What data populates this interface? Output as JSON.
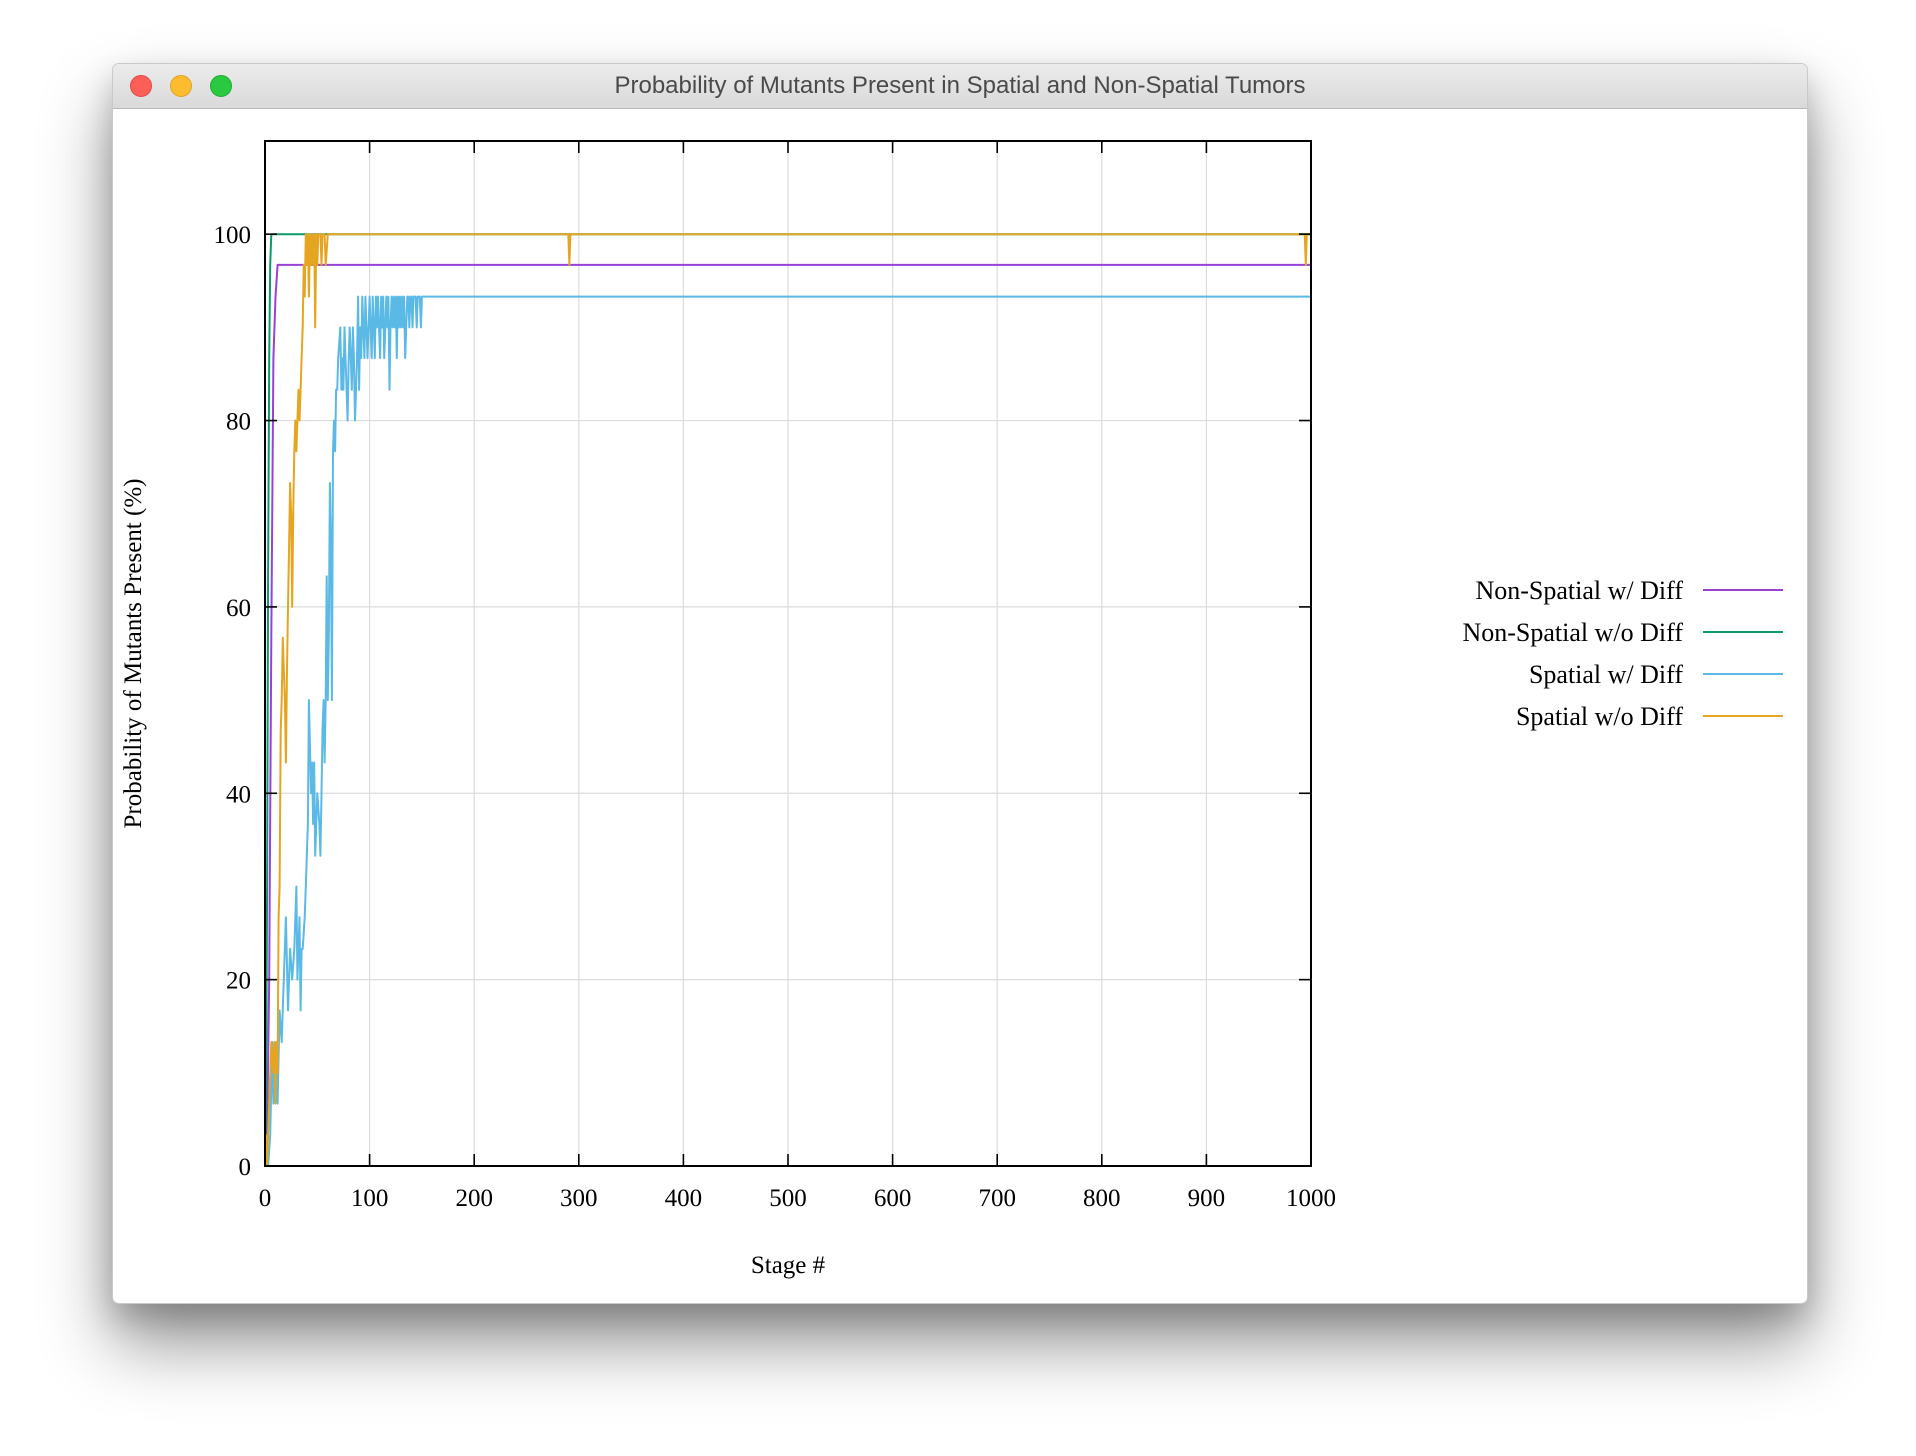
{
  "window": {
    "title": "Probability of Mutants Present in Spatial and Non-Spatial Tumors"
  },
  "chart_data": {
    "type": "line",
    "title": "",
    "xlabel": "Stage #",
    "ylabel": "Probability of Mutants Present (%)",
    "xlim": [
      0,
      1000
    ],
    "ylim": [
      0,
      110
    ],
    "xticks": [
      0,
      100,
      200,
      300,
      400,
      500,
      600,
      700,
      800,
      900,
      1000
    ],
    "yticks": [
      0,
      20,
      40,
      60,
      80,
      100
    ],
    "grid": true,
    "legend_position": "right",
    "series": [
      {
        "name": "Non-Spatial w/ Diff",
        "color": "#9b40d6",
        "x": [
          0,
          2,
          4,
          6,
          8,
          10,
          12,
          15,
          1000
        ],
        "y": [
          0,
          3.3,
          20,
          56.7,
          86.7,
          93.3,
          96.7,
          96.7,
          96.7
        ]
      },
      {
        "name": "Non-Spatial w/o Diff",
        "color": "#0a9a6e",
        "x": [
          0,
          1,
          2,
          3,
          4,
          5,
          6,
          7,
          8,
          1000
        ],
        "y": [
          0,
          6.7,
          30,
          63.3,
          86.7,
          96.7,
          100,
          100,
          100,
          100
        ]
      },
      {
        "name": "Spatial w/ Diff",
        "color": "#5bb9e6",
        "x": [
          0,
          3,
          5,
          7,
          8,
          9,
          10,
          12,
          14,
          16,
          18,
          20,
          22,
          24,
          26,
          28,
          30,
          31,
          32,
          33,
          34,
          35,
          36,
          38,
          39,
          40,
          41,
          42,
          44,
          45,
          46,
          47,
          48,
          50,
          52,
          53,
          54,
          55,
          56,
          57,
          58,
          59,
          60,
          61,
          62,
          63,
          64,
          65,
          66,
          67,
          68,
          69,
          70,
          72,
          73,
          74,
          75,
          76,
          77,
          78,
          79,
          80,
          81,
          82,
          83,
          84,
          85,
          86,
          87,
          88,
          89,
          90,
          91,
          92,
          93,
          94,
          95,
          96,
          97,
          98,
          99,
          100,
          101,
          102,
          103,
          104,
          105,
          106,
          107,
          108,
          109,
          110,
          111,
          112,
          113,
          114,
          115,
          116,
          117,
          118,
          119,
          120,
          121,
          122,
          123,
          124,
          125,
          126,
          127,
          128,
          129,
          130,
          131,
          132,
          133,
          134,
          135,
          136,
          137,
          138,
          139,
          140,
          141,
          142,
          143,
          144,
          145,
          146,
          147,
          148,
          149,
          150,
          152,
          154,
          156,
          158,
          160,
          162,
          164,
          166,
          168,
          170,
          172,
          174,
          176,
          178,
          180,
          182,
          184,
          186,
          188,
          190,
          192,
          194,
          196,
          198,
          200,
          202,
          1000
        ],
        "y": [
          0,
          0,
          3.3,
          13.3,
          6.7,
          10,
          13.3,
          6.7,
          16.7,
          13.3,
          20,
          26.7,
          16.7,
          23.3,
          20,
          23.3,
          30,
          20,
          23.3,
          26.7,
          16.7,
          23.3,
          23.3,
          26.7,
          30,
          33.3,
          36.7,
          50,
          40,
          43.3,
          36.7,
          43.3,
          33.3,
          40,
          36.7,
          33.3,
          40,
          46.7,
          50,
          43.3,
          50,
          63.3,
          50,
          56.7,
          73.3,
          66.7,
          50,
          76.7,
          80,
          76.7,
          83.3,
          83.3,
          86.7,
          90,
          83.3,
          86.7,
          83.3,
          90,
          86.7,
          83.3,
          80,
          86.7,
          90,
          86.7,
          83.3,
          90,
          86.7,
          80,
          83.3,
          86.7,
          93.3,
          83.3,
          90,
          86.7,
          93.3,
          90,
          86.7,
          93.3,
          90,
          86.7,
          90,
          93.3,
          90,
          86.7,
          93.3,
          90,
          86.7,
          93.3,
          90,
          93.3,
          90,
          86.7,
          93.3,
          90,
          93.3,
          86.7,
          90,
          93.3,
          90,
          93.3,
          83.3,
          90,
          93.3,
          90,
          93.3,
          90,
          93.3,
          86.7,
          93.3,
          90,
          93.3,
          90,
          93.3,
          90,
          93.3,
          86.7,
          90,
          93.3,
          93.3,
          90,
          93.3,
          93.3,
          90,
          93.3,
          93.3,
          93.3,
          90,
          93.3,
          93.3,
          93.3,
          90,
          93.3,
          93.3,
          93.3,
          93.3,
          93.3,
          93.3,
          93.3,
          93.3,
          93.3,
          93.3,
          93.3,
          93.3,
          93.3,
          93.3,
          93.3,
          93.3,
          93.3,
          93.3,
          93.3,
          93.3,
          93.3,
          93.3,
          93.3,
          93.3,
          93.3,
          93.3,
          93.3,
          93.3
        ]
      },
      {
        "name": "Spatial w/o Diff",
        "color": "#e6a520",
        "x": [
          0,
          1,
          2,
          3,
          4,
          6,
          8,
          9,
          10,
          11,
          12,
          13,
          14,
          15,
          16,
          17,
          18,
          19,
          20,
          21,
          22,
          23,
          24,
          25,
          26,
          27,
          28,
          29,
          30,
          31,
          32,
          33,
          34,
          35,
          36,
          37,
          38,
          39,
          40,
          41,
          42,
          43,
          44,
          45,
          46,
          47,
          48,
          49,
          50,
          51,
          52,
          53,
          54,
          55,
          56,
          57,
          58,
          60,
          62,
          64,
          66,
          67,
          68,
          70,
          290,
          291,
          292,
          293,
          994,
          995,
          996,
          997,
          1000
        ],
        "y": [
          0,
          3.3,
          0,
          3.3,
          6.7,
          13.3,
          10,
          13.3,
          6.7,
          13.3,
          10,
          26.7,
          30,
          46.7,
          50,
          56.7,
          53.3,
          50,
          43.3,
          53.3,
          60,
          66.7,
          73.3,
          70,
          60,
          70,
          76.7,
          80,
          76.7,
          80,
          83.3,
          80,
          83.3,
          86.7,
          90,
          96.7,
          93.3,
          100,
          96.7,
          100,
          93.3,
          100,
          96.7,
          100,
          96.7,
          100,
          90,
          100,
          96.7,
          100,
          100,
          100,
          96.7,
          100,
          100,
          100,
          96.7,
          100,
          100,
          100,
          100,
          100,
          100,
          100,
          100,
          96.7,
          100,
          100,
          100,
          96.7,
          100,
          100,
          100
        ]
      }
    ]
  }
}
